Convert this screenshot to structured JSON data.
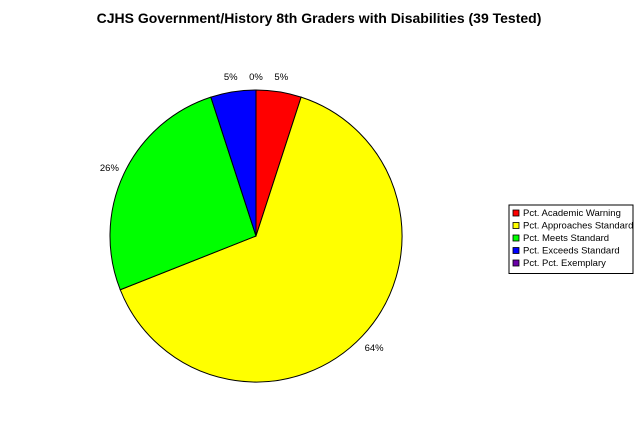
{
  "chart_data": {
    "type": "pie",
    "title": "CJHS Government/History 8th Graders with Disabilities (39 Tested)",
    "slices": [
      {
        "name": "Pct. Academic Warning",
        "value": 5,
        "label": "5%",
        "color": "#ff0000"
      },
      {
        "name": "Pct. Approaches Standard",
        "value": 64,
        "label": "64%",
        "color": "#ffff00"
      },
      {
        "name": "Pct. Meets Standard",
        "value": 26,
        "label": "26%",
        "color": "#00ff00"
      },
      {
        "name": "Pct. Exceeds Standard",
        "value": 5,
        "label": "5%",
        "color": "#0000ff"
      },
      {
        "name": "Pct. Pct. Exemplary",
        "value": 0,
        "label": "0%",
        "color": "#6a00a8"
      }
    ],
    "legend_position": "right",
    "start_angle": "12 o'clock",
    "direction": "clockwise"
  }
}
